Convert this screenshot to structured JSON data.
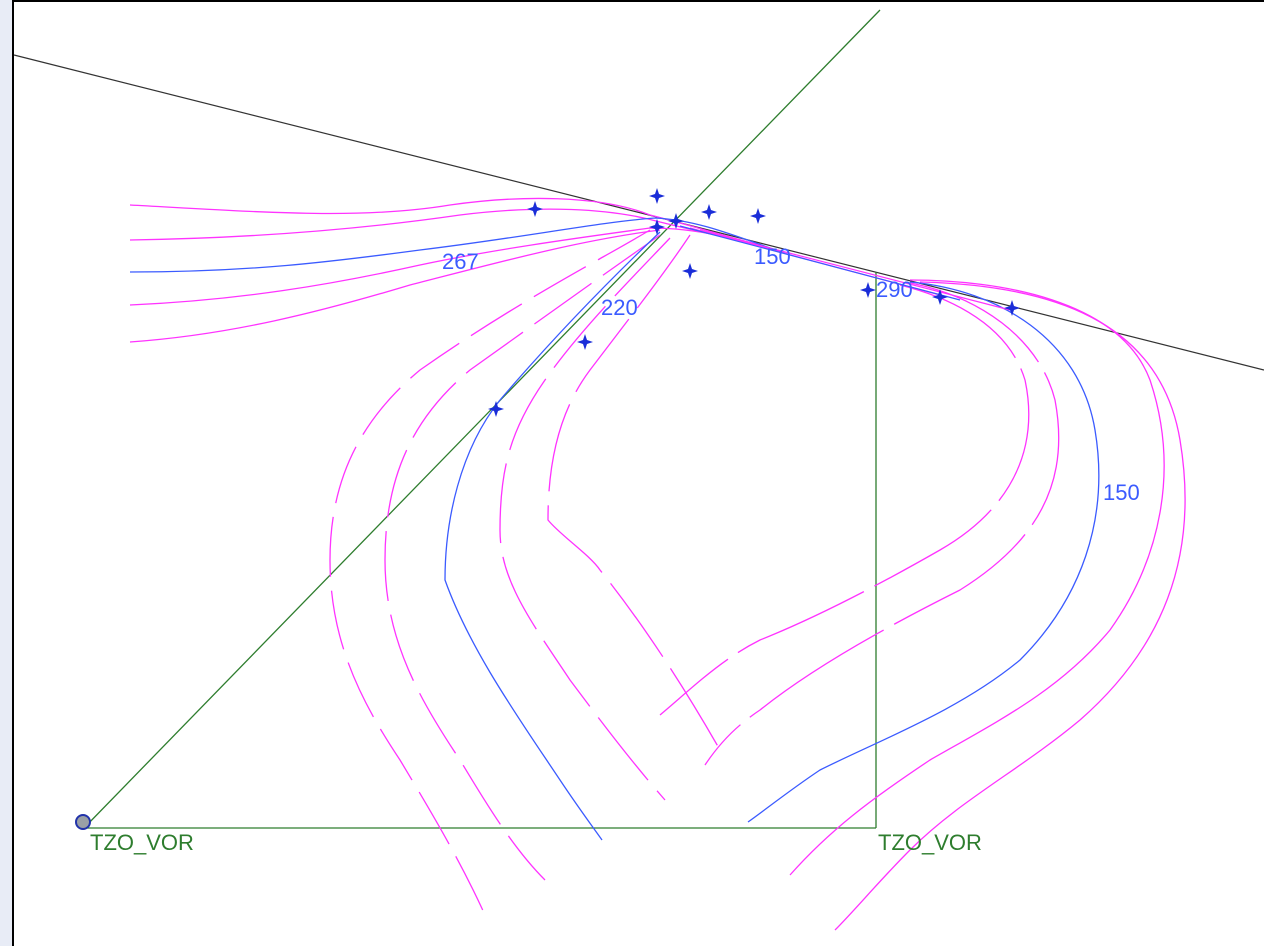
{
  "colors": {
    "contour_main": "#3b5bff",
    "contour_other": "#ff33ff",
    "navaid_line": "#2e7d2e",
    "boundary_line": "#333333",
    "marker": "#1a2dd8"
  },
  "labels": {
    "contour_267": "267",
    "contour_220": "220",
    "contour_150_top": "150",
    "contour_150_right": "150",
    "overlap_label": "290",
    "vor_left": "TZO_VOR",
    "vor_right": "TZO_VOR"
  },
  "icons": {
    "marker": "crosshair-star-icon",
    "vor_station": "circle-icon"
  }
}
